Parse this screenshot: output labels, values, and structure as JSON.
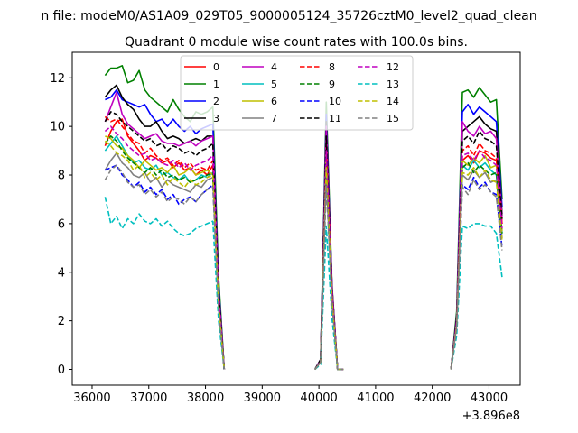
{
  "suptitle": "n file: modeM0/AS1A09_029T05_9000005124_35726cztM0_level2_quad_clean",
  "chart_data": {
    "type": "line",
    "title": "Quadrant 0 module wise count rates with 100.0s bins.",
    "xlabel": "",
    "ylabel": "",
    "xlim": [
      35650,
      43550
    ],
    "ylim": [
      -0.65,
      13.05
    ],
    "x_offset_label": "+3.896e8",
    "xticks": [
      36000,
      37000,
      38000,
      39000,
      40000,
      41000,
      42000,
      43000
    ],
    "yticks": [
      0,
      2,
      4,
      6,
      8,
      10,
      12
    ],
    "legend": {
      "location": "top-center",
      "columns": 4
    },
    "segments": [
      {
        "x_start": 36230,
        "x_end": 38330,
        "step": 100
      },
      {
        "x_start": 39930,
        "x_end": 40430,
        "step": 100
      },
      {
        "x_start": 42330,
        "x_end": 43230,
        "step": 100
      }
    ],
    "series": [
      {
        "name": "0",
        "color": "#ff0000",
        "dash": false,
        "segments": [
          [
            9.2,
            9.8,
            10.2,
            10.3,
            9.6,
            9.3,
            9.0,
            8.6,
            8.8,
            8.7,
            8.5,
            8.6,
            8.3,
            8.5,
            8.2,
            8.3,
            8.0,
            8.2,
            8.0,
            8.4,
            3.0,
            0.0
          ],
          [
            0.0,
            0.3,
            9.0,
            3.0,
            0.0,
            0.0
          ],
          [
            0.0,
            2.0,
            8.6,
            8.8,
            8.5,
            9.0,
            8.9,
            8.7,
            8.6,
            6.0
          ]
        ]
      },
      {
        "name": "1",
        "color": "#008000",
        "dash": false,
        "segments": [
          [
            12.1,
            12.4,
            12.4,
            12.5,
            11.8,
            11.9,
            12.3,
            11.5,
            11.2,
            11.0,
            10.8,
            10.6,
            11.1,
            10.7,
            10.4,
            10.2,
            10.6,
            10.5,
            10.6,
            10.8,
            3.8,
            0.0
          ],
          [
            0.0,
            0.4,
            11.0,
            3.5,
            0.0,
            0.0
          ],
          [
            0.0,
            2.4,
            11.4,
            11.5,
            11.2,
            11.6,
            11.3,
            11.0,
            11.1,
            7.0
          ]
        ]
      },
      {
        "name": "2",
        "color": "#0000ff",
        "dash": false,
        "segments": [
          [
            11.1,
            11.2,
            11.5,
            11.1,
            11.0,
            10.9,
            10.8,
            10.9,
            10.5,
            10.2,
            10.3,
            10.0,
            10.3,
            10.0,
            9.8,
            10.0,
            9.7,
            9.9,
            10.0,
            10.1,
            3.5,
            0.0
          ],
          [
            0.0,
            0.4,
            10.5,
            3.4,
            0.0,
            0.0
          ],
          [
            0.0,
            2.2,
            10.6,
            10.9,
            10.5,
            10.8,
            10.6,
            10.4,
            10.2,
            6.7
          ]
        ]
      },
      {
        "name": "3",
        "color": "#000000",
        "dash": false,
        "segments": [
          [
            11.2,
            11.5,
            11.7,
            11.2,
            10.9,
            10.7,
            10.3,
            10.0,
            10.0,
            10.2,
            9.8,
            9.5,
            9.6,
            9.5,
            9.3,
            9.4,
            9.5,
            9.4,
            9.6,
            9.6,
            3.3,
            0.0
          ],
          [
            0.0,
            0.4,
            10.2,
            3.4,
            0.0,
            0.0
          ],
          [
            0.0,
            2.2,
            9.8,
            10.0,
            10.2,
            10.4,
            10.1,
            9.9,
            9.8,
            6.4
          ]
        ]
      },
      {
        "name": "4",
        "color": "#bf00bf",
        "dash": false,
        "segments": [
          [
            10.2,
            10.8,
            11.4,
            10.5,
            10.1,
            9.9,
            9.7,
            9.5,
            9.6,
            9.7,
            9.4,
            9.3,
            9.3,
            9.2,
            9.3,
            9.4,
            9.2,
            9.4,
            9.5,
            9.6,
            3.3,
            0.0
          ],
          [
            0.0,
            0.4,
            10.0,
            3.4,
            0.0,
            0.0
          ],
          [
            0.0,
            2.1,
            10.2,
            9.8,
            9.6,
            10.0,
            9.7,
            9.8,
            9.5,
            6.3
          ]
        ]
      },
      {
        "name": "5",
        "color": "#00bfbf",
        "dash": false,
        "segments": [
          [
            9.0,
            9.3,
            9.6,
            9.2,
            8.8,
            8.5,
            8.6,
            8.3,
            8.2,
            8.4,
            8.0,
            8.1,
            7.9,
            7.8,
            8.0,
            7.7,
            7.8,
            8.0,
            7.9,
            8.1,
            2.8,
            0.0
          ],
          [
            0.0,
            0.3,
            8.6,
            3.0,
            0.0,
            0.0
          ],
          [
            0.0,
            1.9,
            8.4,
            8.2,
            8.6,
            8.3,
            8.5,
            8.2,
            8.0,
            5.6
          ]
        ]
      },
      {
        "name": "6",
        "color": "#bfbf00",
        "dash": false,
        "segments": [
          [
            9.6,
            9.5,
            9.2,
            9.1,
            8.8,
            8.6,
            8.3,
            8.6,
            8.4,
            8.2,
            8.3,
            8.1,
            8.4,
            8.0,
            8.1,
            8.3,
            8.0,
            8.1,
            8.2,
            8.0,
            2.9,
            0.0
          ],
          [
            0.0,
            0.3,
            8.8,
            3.0,
            0.0,
            0.0
          ],
          [
            0.0,
            1.9,
            8.6,
            8.4,
            8.7,
            8.5,
            8.8,
            8.3,
            8.4,
            5.7
          ]
        ]
      },
      {
        "name": "7",
        "color": "#808080",
        "dash": false,
        "segments": [
          [
            8.2,
            8.6,
            8.9,
            8.5,
            8.3,
            8.0,
            7.9,
            8.1,
            7.7,
            7.9,
            7.5,
            7.8,
            7.6,
            7.5,
            7.4,
            7.3,
            7.6,
            7.5,
            7.8,
            7.9,
            2.6,
            0.0
          ],
          [
            0.0,
            0.3,
            8.3,
            2.9,
            0.0,
            0.0
          ],
          [
            0.0,
            1.8,
            8.0,
            7.8,
            8.2,
            7.9,
            8.1,
            7.7,
            7.8,
            5.4
          ]
        ]
      },
      {
        "name": "8",
        "color": "#ff0000",
        "dash": true,
        "segments": [
          [
            10.4,
            10.2,
            10.3,
            10.0,
            9.7,
            9.4,
            9.3,
            8.9,
            9.1,
            8.8,
            8.6,
            8.7,
            8.4,
            8.6,
            8.3,
            8.5,
            8.2,
            8.3,
            8.2,
            8.6,
            3.0,
            0.0
          ],
          [
            0.0,
            0.3,
            9.2,
            3.1,
            0.0,
            0.0
          ],
          [
            0.0,
            2.0,
            9.0,
            9.2,
            8.8,
            9.3,
            9.0,
            8.9,
            8.7,
            6.0
          ]
        ]
      },
      {
        "name": "9",
        "color": "#008000",
        "dash": true,
        "segments": [
          [
            9.3,
            9.6,
            9.4,
            9.0,
            8.7,
            8.5,
            8.3,
            8.1,
            8.3,
            8.0,
            8.2,
            7.9,
            8.0,
            7.8,
            7.9,
            7.7,
            7.8,
            7.9,
            8.0,
            8.1,
            2.8,
            0.0
          ],
          [
            0.0,
            0.3,
            8.5,
            3.0,
            0.0,
            0.0
          ],
          [
            0.0,
            1.9,
            8.3,
            8.5,
            8.1,
            8.4,
            8.2,
            8.0,
            8.1,
            5.6
          ]
        ]
      },
      {
        "name": "10",
        "color": "#0000ff",
        "dash": true,
        "segments": [
          [
            8.2,
            8.3,
            8.4,
            8.0,
            7.8,
            7.5,
            7.7,
            7.3,
            7.5,
            7.2,
            7.4,
            7.0,
            7.2,
            6.8,
            7.0,
            7.1,
            6.9,
            7.2,
            7.4,
            7.6,
            2.6,
            0.0
          ],
          [
            0.0,
            0.3,
            8.0,
            2.8,
            0.0,
            0.0
          ],
          [
            0.0,
            1.8,
            7.6,
            7.4,
            7.9,
            7.5,
            7.7,
            7.3,
            7.2,
            5.0
          ]
        ]
      },
      {
        "name": "11",
        "color": "#000000",
        "dash": true,
        "segments": [
          [
            10.2,
            10.6,
            10.5,
            10.2,
            10.0,
            9.8,
            9.6,
            9.4,
            9.5,
            9.2,
            9.3,
            9.0,
            9.2,
            9.1,
            8.9,
            9.0,
            8.8,
            9.0,
            9.1,
            9.3,
            3.2,
            0.0
          ],
          [
            0.0,
            0.4,
            9.6,
            3.2,
            0.0,
            0.0
          ],
          [
            0.0,
            2.1,
            9.4,
            9.6,
            9.3,
            9.8,
            9.5,
            9.4,
            9.2,
            6.2
          ]
        ]
      },
      {
        "name": "12",
        "color": "#bf00bf",
        "dash": true,
        "segments": [
          [
            9.8,
            10.0,
            9.7,
            9.5,
            9.2,
            9.0,
            8.8,
            8.9,
            8.6,
            8.7,
            8.5,
            8.4,
            8.6,
            8.3,
            8.5,
            8.2,
            8.4,
            8.5,
            8.6,
            8.8,
            3.0,
            0.0
          ],
          [
            0.0,
            0.3,
            9.0,
            3.1,
            0.0,
            0.0
          ],
          [
            0.0,
            2.0,
            8.8,
            8.9,
            8.6,
            9.0,
            8.7,
            8.6,
            8.4,
            5.8
          ]
        ]
      },
      {
        "name": "13",
        "color": "#00bfbf",
        "dash": true,
        "segments": [
          [
            7.1,
            6.0,
            6.3,
            5.8,
            6.2,
            6.0,
            6.4,
            6.1,
            6.0,
            6.2,
            5.9,
            6.1,
            5.8,
            5.6,
            5.5,
            5.6,
            5.8,
            5.9,
            6.0,
            6.1,
            2.0,
            0.0
          ],
          [
            0.0,
            0.2,
            5.9,
            2.1,
            0.0,
            0.0
          ],
          [
            0.0,
            1.4,
            5.9,
            5.8,
            6.0,
            6.0,
            5.9,
            5.9,
            5.6,
            3.8
          ]
        ]
      },
      {
        "name": "14",
        "color": "#bfbf00",
        "dash": true,
        "segments": [
          [
            9.4,
            9.2,
            8.9,
            8.8,
            8.6,
            8.2,
            8.4,
            7.9,
            8.1,
            7.8,
            8.0,
            7.6,
            7.9,
            7.7,
            7.5,
            7.8,
            7.6,
            7.7,
            7.9,
            8.0,
            2.7,
            0.0
          ],
          [
            0.0,
            0.3,
            8.3,
            2.9,
            0.0,
            0.0
          ],
          [
            0.0,
            1.8,
            8.1,
            8.0,
            8.3,
            7.9,
            8.2,
            7.8,
            7.7,
            5.3
          ]
        ]
      },
      {
        "name": "15",
        "color": "#808080",
        "dash": true,
        "segments": [
          [
            7.8,
            8.2,
            8.4,
            8.1,
            7.7,
            7.5,
            7.6,
            7.2,
            7.4,
            7.1,
            7.3,
            6.9,
            7.1,
            7.0,
            6.8,
            7.1,
            6.9,
            7.2,
            7.4,
            7.5,
            2.5,
            0.0
          ],
          [
            0.0,
            0.3,
            7.6,
            2.7,
            0.0,
            0.0
          ],
          [
            0.0,
            1.7,
            7.5,
            7.2,
            7.8,
            7.4,
            7.6,
            7.3,
            7.1,
            4.9
          ]
        ]
      }
    ]
  }
}
